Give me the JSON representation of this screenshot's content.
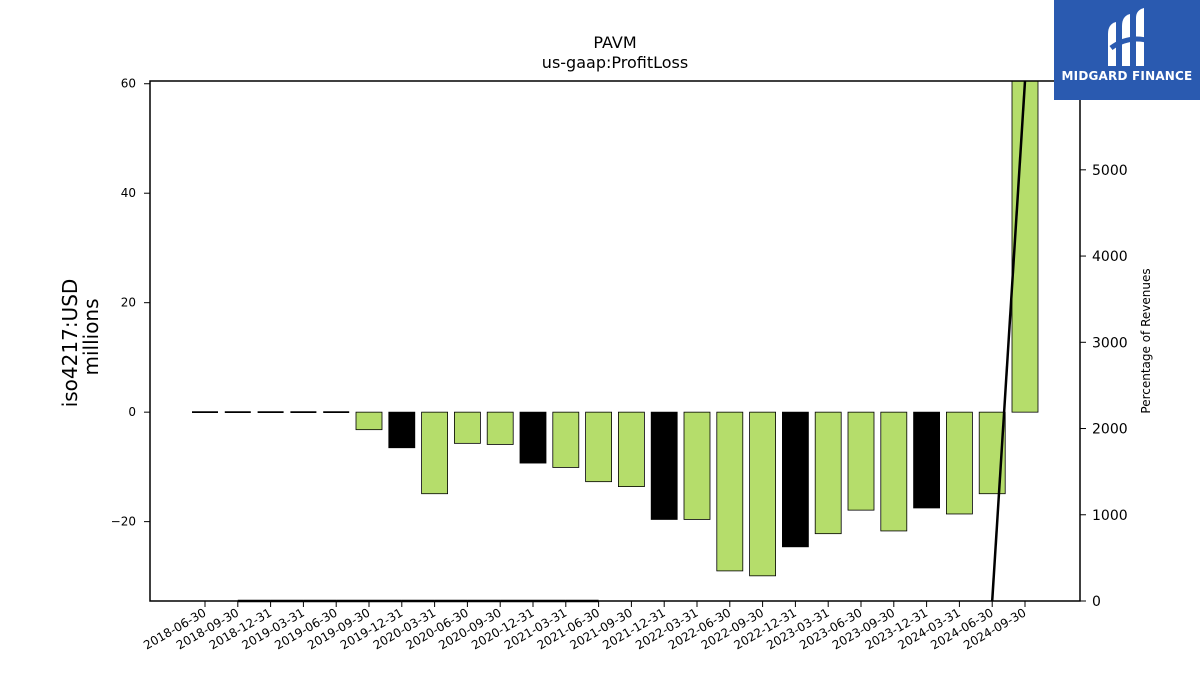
{
  "chart_data": {
    "type": "bar",
    "title": "PAVM",
    "subtitle": "us-gaap:ProfitLoss",
    "ylabel_line1": "iso4217:USD",
    "ylabel_line2": "millions",
    "y2label": "Percentage of Revenues",
    "ylim": [
      -34.5,
      60.5
    ],
    "y2lim": [
      0,
      6030
    ],
    "yticks": [
      -20,
      0,
      20,
      40,
      60
    ],
    "y2ticks": [
      0,
      1000,
      2000,
      3000,
      4000,
      5000
    ],
    "grid": false,
    "categories": [
      "2018-06-30",
      "2018-09-30",
      "2018-12-31",
      "2019-03-31",
      "2019-06-30",
      "2019-09-30",
      "2019-12-31",
      "2020-03-31",
      "2020-06-30",
      "2020-09-30",
      "2020-12-31",
      "2021-03-31",
      "2021-06-30",
      "2021-09-30",
      "2021-12-31",
      "2022-03-31",
      "2022-06-30",
      "2022-09-30",
      "2022-12-31",
      "2023-03-31",
      "2023-06-30",
      "2023-09-30",
      "2023-12-31",
      "2024-03-31",
      "2024-06-30",
      "2024-09-30"
    ],
    "values": [
      0,
      0,
      0,
      0,
      0,
      -3.2,
      -6.5,
      -14.9,
      -5.7,
      -5.9,
      -9.3,
      -10.1,
      -12.7,
      -13.6,
      -19.6,
      -19.6,
      -29.0,
      -29.9,
      -24.6,
      -22.2,
      -17.9,
      -21.7,
      -17.5,
      -18.6,
      -14.9,
      61.5
    ],
    "bar_colors": [
      "#b5dd6b",
      "#b5dd6b",
      "#b5dd6b",
      "#b5dd6b",
      "#b5dd6b",
      "#b5dd6b",
      "#000000",
      "#b5dd6b",
      "#b5dd6b",
      "#b5dd6b",
      "#000000",
      "#b5dd6b",
      "#b5dd6b",
      "#b5dd6b",
      "#000000",
      "#b5dd6b",
      "#b5dd6b",
      "#b5dd6b",
      "#000000",
      "#b5dd6b",
      "#b5dd6b",
      "#b5dd6b",
      "#000000",
      "#b5dd6b",
      "#b5dd6b",
      "#b5dd6b"
    ],
    "pct_of_revenues": [
      null,
      0,
      0,
      0,
      0,
      0,
      0,
      0,
      0,
      0,
      0,
      0,
      0,
      null,
      null,
      null,
      null,
      null,
      null,
      null,
      null,
      null,
      null,
      null,
      0,
      6030
    ]
  },
  "logo": {
    "name": "MIDGARD FINANCE"
  },
  "colors": {
    "green_bar": "#b5dd6b",
    "black_bar": "#000000",
    "logo_bg": "#2a5ab0"
  }
}
